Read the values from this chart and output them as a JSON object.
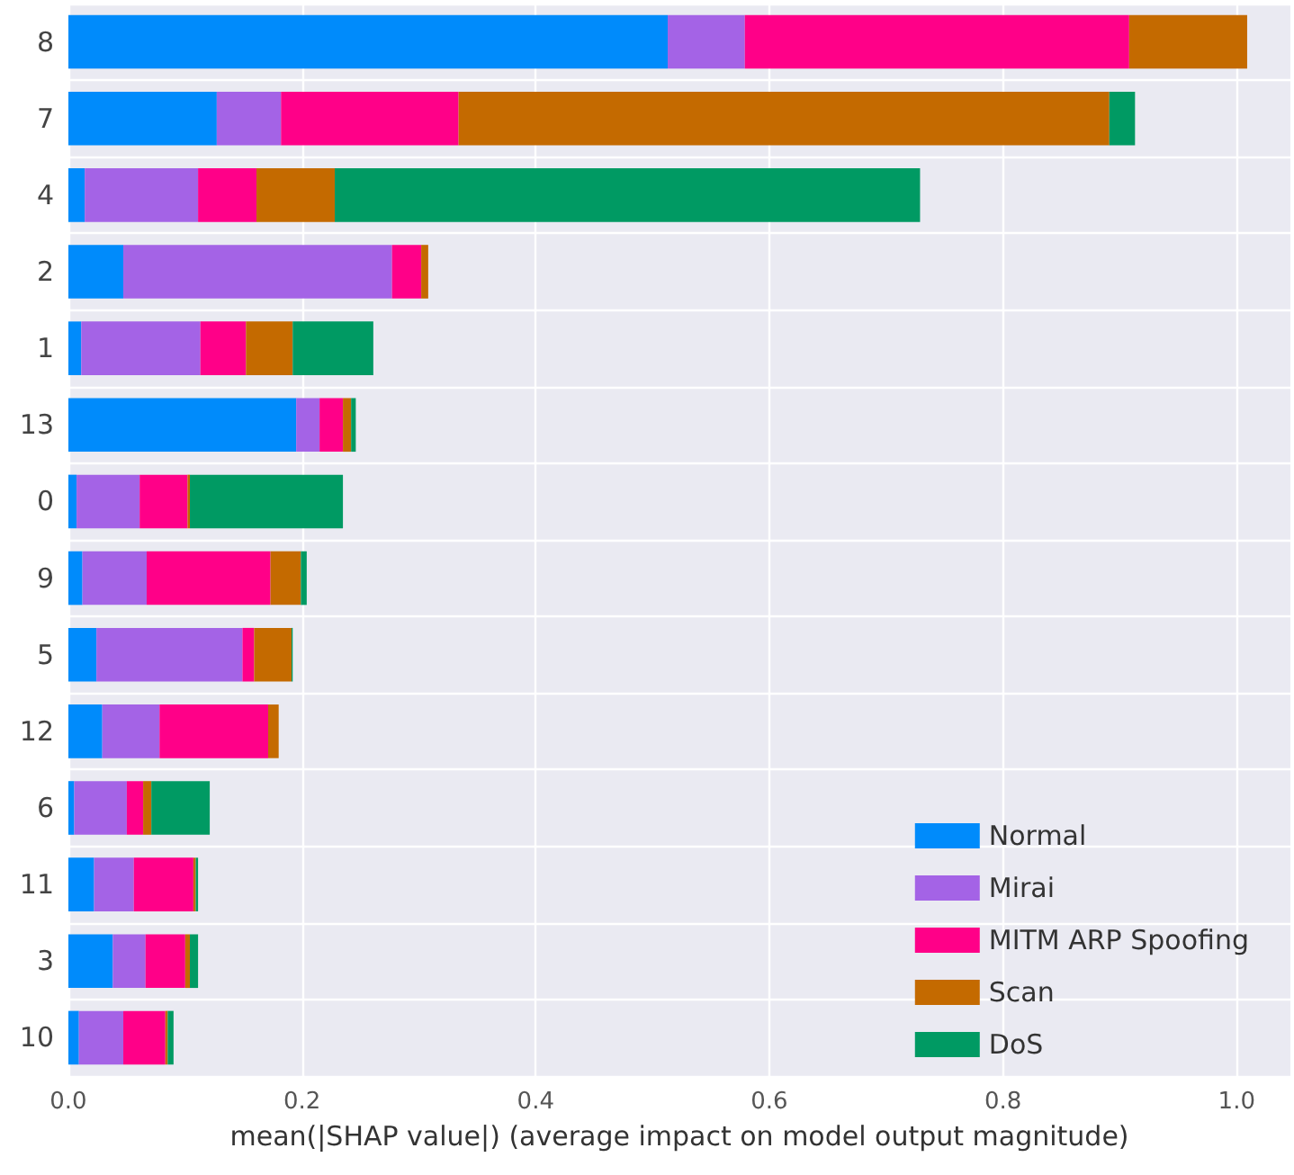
{
  "chart_data": {
    "type": "bar",
    "orientation": "horizontal",
    "stacked": true,
    "xlabel": "mean(|SHAP value|) (average impact on model output magnitude)",
    "categories": [
      "8",
      "7",
      "4",
      "2",
      "1",
      "13",
      "0",
      "9",
      "5",
      "12",
      "6",
      "11",
      "3",
      "10"
    ],
    "series": [
      {
        "name": "Normal",
        "color": "#008bfb",
        "values": [
          0.513,
          0.127,
          0.014,
          0.047,
          0.011,
          0.195,
          0.007,
          0.012,
          0.024,
          0.029,
          0.005,
          0.022,
          0.038,
          0.009
        ]
      },
      {
        "name": "Mirai",
        "color": "#a463e6",
        "values": [
          0.066,
          0.055,
          0.097,
          0.23,
          0.102,
          0.02,
          0.054,
          0.055,
          0.125,
          0.049,
          0.045,
          0.034,
          0.028,
          0.038
        ]
      },
      {
        "name": "MITM ARP Spoofing",
        "color": "#ff0088",
        "values": [
          0.329,
          0.152,
          0.05,
          0.025,
          0.039,
          0.02,
          0.041,
          0.106,
          0.01,
          0.093,
          0.014,
          0.051,
          0.034,
          0.036
        ]
      },
      {
        "name": "Scan",
        "color": "#c46a00",
        "values": [
          0.101,
          0.557,
          0.067,
          0.006,
          0.04,
          0.007,
          0.002,
          0.026,
          0.032,
          0.009,
          0.007,
          0.002,
          0.004,
          0.002
        ]
      },
      {
        "name": "DoS",
        "color": "#009a63",
        "values": [
          0,
          0.022,
          0.501,
          0,
          0.069,
          0.004,
          0.131,
          0.005,
          0.001,
          0,
          0.05,
          0.002,
          0.007,
          0.005
        ]
      }
    ],
    "xlim": [
      0,
      1.046
    ],
    "xticks": [
      {
        "value": 0,
        "label": "0.0"
      },
      {
        "value": 0.2,
        "label": "0.2"
      },
      {
        "value": 0.4,
        "label": "0.4"
      },
      {
        "value": 0.6,
        "label": "0.6"
      },
      {
        "value": 0.8,
        "label": "0.8"
      },
      {
        "value": 1,
        "label": "1.0"
      }
    ],
    "grid": true,
    "legend": "bottom right"
  }
}
